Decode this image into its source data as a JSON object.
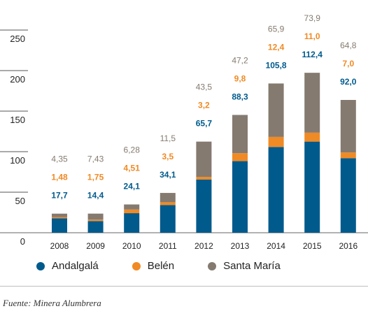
{
  "chart_data": {
    "type": "bar",
    "stacked": true,
    "categories": [
      "2008",
      "2009",
      "2010",
      "2011",
      "2012",
      "2013",
      "2014",
      "2015",
      "2016"
    ],
    "series": [
      {
        "name": "Andalgalá",
        "color": "#005a8c",
        "values": [
          17.7,
          14.4,
          24.1,
          34.1,
          65.7,
          88.3,
          105.8,
          112.4,
          92.0
        ],
        "labels": [
          "17,7",
          "14,4",
          "24,1",
          "34,1",
          "65,7",
          "88,3",
          "105,8",
          "112,4",
          "92,0"
        ]
      },
      {
        "name": "Belén",
        "color": "#f08a24",
        "values": [
          1.48,
          1.75,
          4.51,
          3.5,
          3.2,
          9.8,
          12.4,
          11.0,
          7.0
        ],
        "labels": [
          "1,48",
          "1,75",
          "4,51",
          "3,5",
          "3,2",
          "9,8",
          "12,4",
          "11,0",
          "7,0"
        ]
      },
      {
        "name": "Santa María",
        "color": "#857a70",
        "values": [
          4.35,
          7.43,
          6.28,
          11.5,
          43.5,
          47.2,
          65.9,
          73.9,
          64.8
        ],
        "labels": [
          "4,35",
          "7,43",
          "6,28",
          "11,5",
          "43,5",
          "47,2",
          "65,9",
          "73,9",
          "64,8"
        ]
      }
    ],
    "yticks": [
      "0",
      "50",
      "100",
      "150",
      "200",
      "250"
    ],
    "ylim": [
      0,
      250
    ],
    "grid": false,
    "legend_position": "bottom"
  },
  "legend": {
    "items": [
      {
        "label": "Andalgalá",
        "color": "#005a8c"
      },
      {
        "label": "Belén",
        "color": "#f08a24"
      },
      {
        "label": "Santa María",
        "color": "#857a70"
      }
    ]
  },
  "source": "Fuente: Minera Alumbrera"
}
